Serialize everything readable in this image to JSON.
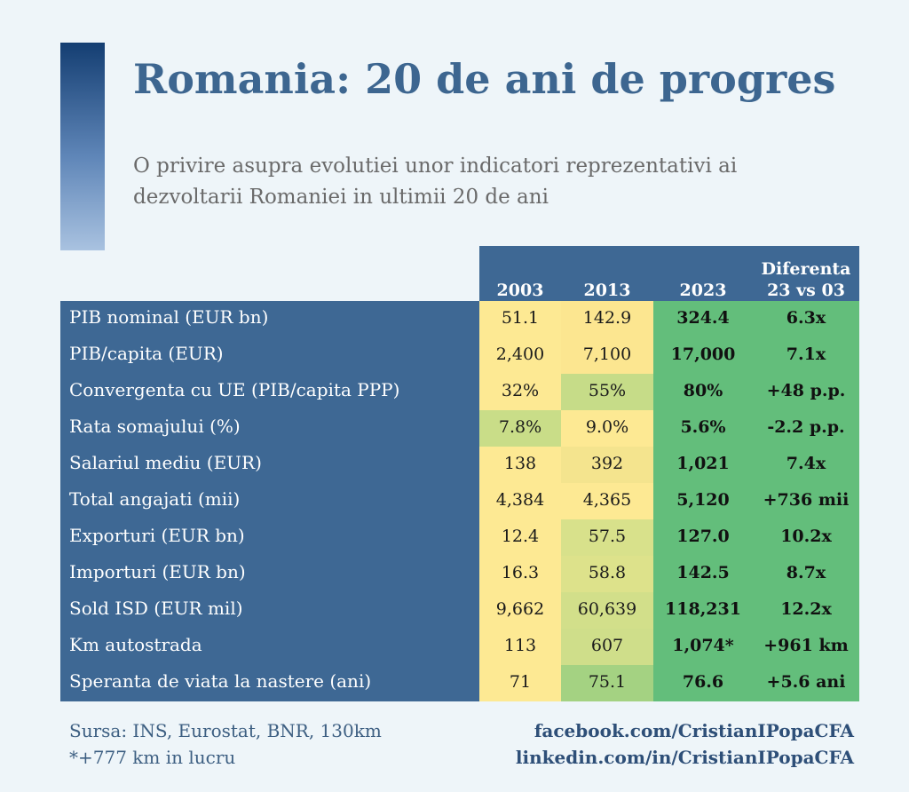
{
  "header": {
    "title": "Romania: 20 de ani de progres",
    "subtitle": "O privire asupra evolutiei unor indicatori reprezentativi ai dezvoltarii Romaniei in ultimii 20 de ani"
  },
  "chart_data": {
    "type": "table",
    "columns": [
      "2003",
      "2013",
      "2023",
      "Diferenta 23 vs 03"
    ],
    "rows": [
      {
        "label": "PIB nominal (EUR bn)",
        "v2003": "51.1",
        "v2013": "142.9",
        "v2023": "324.4",
        "diff": "6.3x",
        "c2003": "#fde993",
        "c2013": "#fce690"
      },
      {
        "label": "PIB/capita (EUR)",
        "v2003": "2,400",
        "v2013": "7,100",
        "v2023": "17,000",
        "diff": "7.1x",
        "c2003": "#fde993",
        "c2013": "#fce690"
      },
      {
        "label": "Convergenta cu UE (PIB/capita PPP)",
        "v2003": "32%",
        "v2013": "55%",
        "v2023": "80%",
        "diff": "+48 p.p.",
        "c2003": "#fde993",
        "c2013": "#c6dc88"
      },
      {
        "label": "Rata somajului (%)",
        "v2003": "7.8%",
        "v2013": "9.0%",
        "v2023": "5.6%",
        "diff": "-2.2 p.p.",
        "c2003": "#c9dd88",
        "c2013": "#fde993"
      },
      {
        "label": "Salariul mediu (EUR)",
        "v2003": "138",
        "v2013": "392",
        "v2023": "1,021",
        "diff": "7.4x",
        "c2003": "#fde993",
        "c2013": "#f4e48e"
      },
      {
        "label": "Total angajati (mii)",
        "v2003": "4,384",
        "v2013": "4,365",
        "v2023": "5,120",
        "diff": "+736 mii",
        "c2003": "#fde993",
        "c2013": "#fde993"
      },
      {
        "label": "Exporturi (EUR bn)",
        "v2003": "12.4",
        "v2013": "57.5",
        "v2023": "127.0",
        "diff": "10.2x",
        "c2003": "#fde993",
        "c2013": "#d8e18b"
      },
      {
        "label": "Importuri (EUR bn)",
        "v2003": "16.3",
        "v2013": "58.8",
        "v2023": "142.5",
        "diff": "8.7x",
        "c2003": "#fde993",
        "c2013": "#dde28b"
      },
      {
        "label": "Sold ISD (EUR mil)",
        "v2003": "9,662",
        "v2013": "60,639",
        "v2023": "118,231",
        "diff": "12.2x",
        "c2003": "#fde993",
        "c2013": "#d2df8a"
      },
      {
        "label": "Km autostrada",
        "v2003": "113",
        "v2013": "607",
        "v2023": "1,074*",
        "diff": "+961 km",
        "c2003": "#fde993",
        "c2013": "#cfde8a"
      },
      {
        "label": "Speranta de viata la nastere (ani)",
        "v2003": "71",
        "v2013": "75.1",
        "v2023": "76.6",
        "diff": "+5.6 ani",
        "c2003": "#fde993",
        "c2013": "#a4d282"
      }
    ]
  },
  "footer": {
    "source": "Sursa: INS, Eurostat, BNR, 130km",
    "note": "*+777 km in lucru",
    "facebook": "facebook.com/CristianIPopaCFA",
    "linkedin": "linkedin.com/in/CristianIPopaCFA"
  },
  "colors": {
    "header_blue": "#3e6894",
    "green": "#63be7b",
    "yellow": "#fde993",
    "title": "#3d6690"
  }
}
